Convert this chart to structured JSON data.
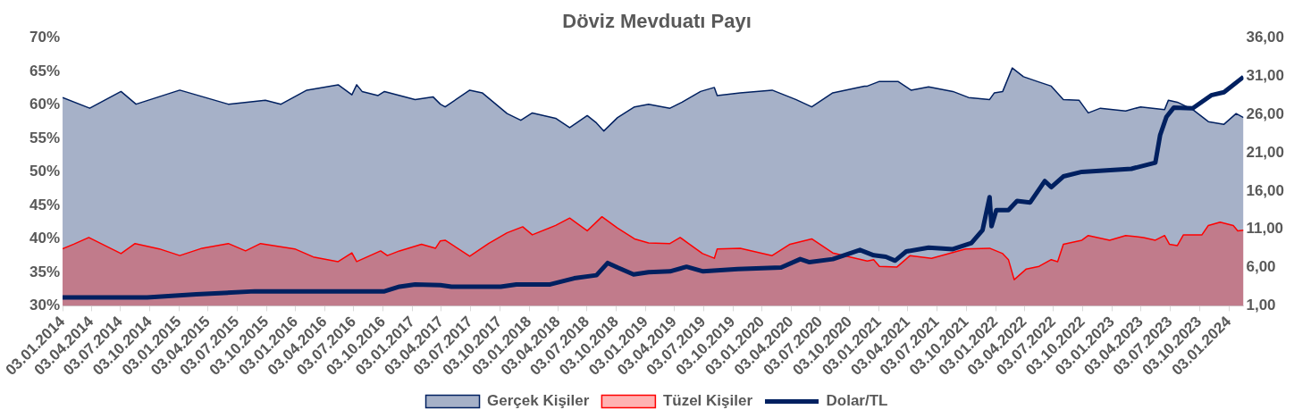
{
  "chart_data": {
    "type": "line",
    "title": "Döviz Mevduatı Payı",
    "series": [
      {
        "name": "Gerçek Kişiler",
        "type": "area",
        "color": "#002060",
        "x": [
          "2014-01-03",
          "2014-03-29",
          "2014-07-05",
          "2014-08-21",
          "2015-01-05",
          "2015-06-06",
          "2015-09-30",
          "2015-11-18",
          "2016-02-07",
          "2016-05-15",
          "2016-06-27",
          "2016-07-12",
          "2016-07-29",
          "2016-09-17",
          "2016-10-07",
          "2017-01-11",
          "2017-03-08",
          "2017-03-31",
          "2017-04-15",
          "2017-07-01",
          "2017-08-09",
          "2017-10-26",
          "2017-12-08",
          "2018-01-13",
          "2018-03-27",
          "2018-05-10",
          "2018-07-04",
          "2018-08-02",
          "2018-08-25",
          "2018-10-07",
          "2018-11-29",
          "2019-01-12",
          "2019-03-20",
          "2019-04-27",
          "2019-06-24",
          "2019-08-06",
          "2019-08-15",
          "2019-10-26",
          "2020-02-03",
          "2020-04-17",
          "2020-06-06",
          "2020-08-11",
          "2020-11-18",
          "2020-11-27",
          "2021-01-04",
          "2021-03-03",
          "2021-04-13",
          "2021-06-07",
          "2021-08-22",
          "2021-10-10",
          "2021-12-15",
          "2021-12-30",
          "2022-01-25",
          "2022-02-24",
          "2022-03-31",
          "2022-05-19",
          "2022-06-26",
          "2022-08-03",
          "2022-09-21",
          "2022-10-20",
          "2022-11-27",
          "2023-02-14",
          "2023-04-02",
          "2023-06-16",
          "2023-06-28",
          "2023-07-26",
          "2023-09-12",
          "2023-10-31",
          "2023-12-19",
          "2024-01-26",
          "2024-02-18"
        ],
        "values": [
          61.1,
          59.5,
          62.0,
          60.1,
          62.2,
          60.1,
          60.7,
          60.1,
          62.2,
          63.0,
          61.5,
          63.0,
          62.0,
          61.4,
          62.0,
          60.8,
          61.2,
          60.1,
          59.7,
          62.2,
          61.8,
          58.7,
          57.7,
          58.8,
          58.0,
          56.6,
          58.4,
          57.3,
          56.1,
          58.1,
          59.7,
          60.1,
          59.5,
          60.4,
          62.0,
          62.6,
          61.4,
          61.8,
          62.2,
          60.8,
          59.7,
          61.8,
          62.8,
          62.8,
          63.5,
          63.5,
          62.2,
          62.7,
          62.0,
          61.1,
          60.8,
          61.8,
          62.0,
          65.5,
          64.2,
          63.4,
          62.8,
          60.8,
          60.7,
          58.8,
          59.5,
          59.1,
          59.7,
          59.3,
          60.7,
          60.4,
          59.3,
          57.5,
          57.1,
          58.7,
          58.1
        ]
      },
      {
        "name": "Tüzel Kişiler",
        "type": "area",
        "color": "#ff0000",
        "x": [
          "2014-01-03",
          "2014-02-07",
          "2014-03-26",
          "2014-07-05",
          "2014-08-18",
          "2014-11-02",
          "2015-01-05",
          "2015-03-16",
          "2015-06-06",
          "2015-07-30",
          "2015-09-15",
          "2015-12-31",
          "2016-02-27",
          "2016-05-15",
          "2016-06-27",
          "2016-07-12",
          "2016-09-25",
          "2016-10-16",
          "2016-11-23",
          "2017-01-31",
          "2017-03-16",
          "2017-03-31",
          "2017-04-15",
          "2017-07-01",
          "2017-08-29",
          "2017-10-26",
          "2017-12-14",
          "2018-01-13",
          "2018-03-27",
          "2018-05-10",
          "2018-07-04",
          "2018-08-19",
          "2018-10-07",
          "2018-11-29",
          "2019-01-12",
          "2019-03-20",
          "2019-04-21",
          "2019-05-17",
          "2019-06-30",
          "2019-08-06",
          "2019-08-15",
          "2019-10-26",
          "2020-02-03",
          "2020-03-30",
          "2020-06-06",
          "2020-08-11",
          "2020-11-27",
          "2020-12-17",
          "2021-01-04",
          "2021-02-28",
          "2021-04-10",
          "2021-06-16",
          "2021-10-01",
          "2021-12-15",
          "2022-01-25",
          "2022-02-12",
          "2022-03-02",
          "2022-04-09",
          "2022-05-19",
          "2022-06-26",
          "2022-07-16",
          "2022-08-03",
          "2022-09-30",
          "2022-10-20",
          "2022-12-26",
          "2023-02-14",
          "2023-04-11",
          "2023-05-18",
          "2023-06-16",
          "2023-07-01",
          "2023-07-26",
          "2023-08-14",
          "2023-10-11",
          "2023-10-31",
          "2023-12-07",
          "2024-01-17",
          "2024-01-31",
          "2024-02-18"
        ],
        "values": [
          38.5,
          39.2,
          40.2,
          37.8,
          39.3,
          38.5,
          37.5,
          38.6,
          39.3,
          38.2,
          39.3,
          38.5,
          37.3,
          36.6,
          37.9,
          36.6,
          38.2,
          37.5,
          38.2,
          39.2,
          38.6,
          39.7,
          39.8,
          37.4,
          39.3,
          40.9,
          41.8,
          40.6,
          42.0,
          43.1,
          41.2,
          43.3,
          41.6,
          40.0,
          39.4,
          39.3,
          40.2,
          39.3,
          37.8,
          37.1,
          38.5,
          38.6,
          37.5,
          39.2,
          40.0,
          37.9,
          36.7,
          36.9,
          35.9,
          35.8,
          37.5,
          37.1,
          38.5,
          38.6,
          37.8,
          36.9,
          33.9,
          35.5,
          35.9,
          36.9,
          36.6,
          39.2,
          39.8,
          40.5,
          39.8,
          40.5,
          40.2,
          39.8,
          40.5,
          39.2,
          39.0,
          40.6,
          40.6,
          42.0,
          42.5,
          42.0,
          41.2,
          41.3
        ]
      },
      {
        "name": "Dolar/TL",
        "type": "line",
        "axis": "y2",
        "color": "#002060",
        "x": [
          "2014-01-03",
          "2014-09-25",
          "2015-02-26",
          "2015-08-28",
          "2015-12-22",
          "2016-05-15",
          "2016-10-07",
          "2016-11-23",
          "2017-01-11",
          "2017-03-31",
          "2017-05-05",
          "2017-10-06",
          "2017-11-24",
          "2018-03-10",
          "2018-05-24",
          "2018-08-02",
          "2018-09-06",
          "2018-10-07",
          "2018-11-26",
          "2019-01-12",
          "2019-03-20",
          "2019-05-11",
          "2019-07-02",
          "2019-10-18",
          "2020-03-02",
          "2020-05-01",
          "2020-05-30",
          "2020-08-11",
          "2020-11-04",
          "2020-12-17",
          "2021-01-24",
          "2021-02-22",
          "2021-03-29",
          "2021-06-07",
          "2021-08-22",
          "2021-10-19",
          "2021-11-23",
          "2021-12-15",
          "2021-12-21",
          "2022-01-05",
          "2022-02-12",
          "2022-03-11",
          "2022-04-21",
          "2022-06-06",
          "2022-06-26",
          "2022-08-03",
          "2022-09-30",
          "2023-03-04",
          "2023-05-18",
          "2023-06-02",
          "2023-06-22",
          "2023-07-15",
          "2023-09-12",
          "2023-11-09",
          "2023-12-19",
          "2024-02-18"
        ],
        "values": [
          2.1,
          2.1,
          2.5,
          2.9,
          2.9,
          2.9,
          2.9,
          3.5,
          3.8,
          3.7,
          3.5,
          3.5,
          3.8,
          3.8,
          4.6,
          5.0,
          6.6,
          6.0,
          5.1,
          5.4,
          5.5,
          6.1,
          5.5,
          5.8,
          6.0,
          7.1,
          6.7,
          7.1,
          8.3,
          7.6,
          7.4,
          6.9,
          8.1,
          8.6,
          8.4,
          9.2,
          10.9,
          15.2,
          11.4,
          13.5,
          13.5,
          14.7,
          14.5,
          17.3,
          16.5,
          17.9,
          18.5,
          18.9,
          19.7,
          23.3,
          25.7,
          26.9,
          26.8,
          28.5,
          28.9,
          30.9
        ]
      }
    ],
    "xlim": [
      "2014-01-03",
      "2024-02-18"
    ],
    "xticks": [
      {
        "value": "2014-01-03",
        "label": "03.01.2014"
      },
      {
        "value": "2014-04-03",
        "label": "03.04.2014"
      },
      {
        "value": "2014-07-03",
        "label": "03.07.2014"
      },
      {
        "value": "2014-10-03",
        "label": "03.10.2014"
      },
      {
        "value": "2015-01-03",
        "label": "03.01.2015"
      },
      {
        "value": "2015-04-03",
        "label": "03.04.2015"
      },
      {
        "value": "2015-07-03",
        "label": "03.07.2015"
      },
      {
        "value": "2015-10-03",
        "label": "03.10.2015"
      },
      {
        "value": "2016-01-03",
        "label": "03.01.2016"
      },
      {
        "value": "2016-04-03",
        "label": "03.04.2016"
      },
      {
        "value": "2016-07-03",
        "label": "03.07.2016"
      },
      {
        "value": "2016-10-03",
        "label": "03.10.2016"
      },
      {
        "value": "2017-01-03",
        "label": "03.01.2017"
      },
      {
        "value": "2017-04-03",
        "label": "03.04.2017"
      },
      {
        "value": "2017-07-03",
        "label": "03.07.2017"
      },
      {
        "value": "2017-10-03",
        "label": "03.10.2017"
      },
      {
        "value": "2018-01-03",
        "label": "03.01.2018"
      },
      {
        "value": "2018-04-03",
        "label": "03.04.2018"
      },
      {
        "value": "2018-07-03",
        "label": "03.07.2018"
      },
      {
        "value": "2018-10-03",
        "label": "03.10.2018"
      },
      {
        "value": "2019-01-03",
        "label": "03.01.2019"
      },
      {
        "value": "2019-04-03",
        "label": "03.04.2019"
      },
      {
        "value": "2019-07-03",
        "label": "03.07.2019"
      },
      {
        "value": "2019-10-03",
        "label": "03.10.2019"
      },
      {
        "value": "2020-01-03",
        "label": "03.01.2020"
      },
      {
        "value": "2020-04-03",
        "label": "03.04.2020"
      },
      {
        "value": "2020-07-03",
        "label": "03.07.2020"
      },
      {
        "value": "2020-10-03",
        "label": "03.10.2020"
      },
      {
        "value": "2021-01-03",
        "label": "03.01.2021"
      },
      {
        "value": "2021-04-03",
        "label": "03.04.2021"
      },
      {
        "value": "2021-07-03",
        "label": "03.07.2021"
      },
      {
        "value": "2021-10-03",
        "label": "03.10.2021"
      },
      {
        "value": "2022-01-03",
        "label": "03.01.2022"
      },
      {
        "value": "2022-04-03",
        "label": "03.04.2022"
      },
      {
        "value": "2022-07-03",
        "label": "03.07.2022"
      },
      {
        "value": "2022-10-03",
        "label": "03.10.2022"
      },
      {
        "value": "2023-01-03",
        "label": "03.01.2023"
      },
      {
        "value": "2023-04-03",
        "label": "03.04.2023"
      },
      {
        "value": "2023-07-03",
        "label": "03.07.2023"
      },
      {
        "value": "2023-10-03",
        "label": "03.10.2023"
      },
      {
        "value": "2024-01-03",
        "label": "03.01.2024"
      }
    ],
    "ylim": [
      30,
      70
    ],
    "yticks": [
      {
        "value": 30,
        "label": "30%"
      },
      {
        "value": 35,
        "label": "35%"
      },
      {
        "value": 40,
        "label": "40%"
      },
      {
        "value": 45,
        "label": "45%"
      },
      {
        "value": 50,
        "label": "50%"
      },
      {
        "value": 55,
        "label": "55%"
      },
      {
        "value": 60,
        "label": "60%"
      },
      {
        "value": 65,
        "label": "65%"
      },
      {
        "value": 70,
        "label": "70%"
      }
    ],
    "y2lim": [
      1,
      36
    ],
    "y2ticks": [
      {
        "value": 1,
        "label": "1,00"
      },
      {
        "value": 6,
        "label": "6,00"
      },
      {
        "value": 11,
        "label": "11,00"
      },
      {
        "value": 16,
        "label": "16,00"
      },
      {
        "value": 21,
        "label": "21,00"
      },
      {
        "value": 26,
        "label": "26,00"
      },
      {
        "value": 31,
        "label": "31,00"
      },
      {
        "value": 36,
        "label": "36,00"
      }
    ],
    "grid": false,
    "legend": "bottom",
    "marker": "none"
  }
}
